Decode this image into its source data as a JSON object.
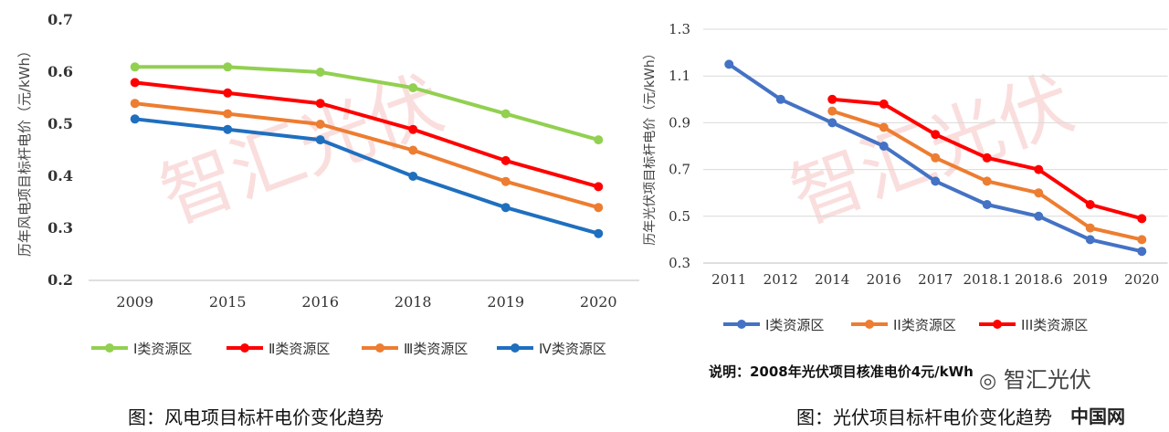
{
  "captions": {
    "wind": "图：风电项目标杆电价变化趋势",
    "solar": "图：光伏项目标杆电价变化趋势"
  },
  "note": "说明：2008年光伏项目核准电价4元/kWh",
  "watermark": "智汇光伏",
  "brand_overlay": {
    "wechat": "智汇光伏",
    "site": "中国网"
  },
  "colors": {
    "green": "#92d050",
    "red": "#ff0000",
    "orange": "#ed7d31",
    "blue": "#1f6fbf",
    "blue_solar": "#4472c4",
    "grid": "#d9d9d9",
    "watermark": "#f6c3c3"
  },
  "chart_data": [
    {
      "type": "line",
      "title": "",
      "ylabel": "历年风电项目标杆电价（元/kWh）",
      "xlabel": "",
      "categories": [
        "2009",
        "2015",
        "2016",
        "2018",
        "2019",
        "2020"
      ],
      "y_ticks": [
        "0.2",
        "0.3",
        "0.4",
        "0.5",
        "0.6",
        "0.7"
      ],
      "ylim": [
        0.2,
        0.7
      ],
      "grid": false,
      "legend_position": "bottom",
      "series": [
        {
          "name": "Ⅰ类资源区",
          "color": "#92d050",
          "values": [
            0.61,
            0.61,
            0.6,
            0.57,
            0.52,
            0.47
          ]
        },
        {
          "name": "Ⅱ类资源区",
          "color": "#ff0000",
          "values": [
            0.58,
            0.56,
            0.54,
            0.49,
            0.43,
            0.38
          ]
        },
        {
          "name": "Ⅲ类资源区",
          "color": "#ed7d31",
          "values": [
            0.54,
            0.52,
            0.5,
            0.45,
            0.39,
            0.34
          ]
        },
        {
          "name": "Ⅳ类资源区",
          "color": "#1f6fbf",
          "values": [
            0.51,
            0.49,
            0.47,
            0.4,
            0.34,
            0.29
          ]
        }
      ]
    },
    {
      "type": "line",
      "title": "",
      "ylabel": "历年光伏项目标杆电价（元/kWh）",
      "xlabel": "",
      "categories": [
        "2011",
        "2012",
        "2014",
        "2016",
        "2017",
        "2018.1",
        "2018.6",
        "2019",
        "2020"
      ],
      "y_ticks": [
        "0.3",
        "0.5",
        "0.7",
        "0.9",
        "1.1",
        "1.3"
      ],
      "ylim": [
        0.3,
        1.3
      ],
      "grid": true,
      "legend_position": "bottom",
      "series": [
        {
          "name": "I类资源区",
          "color": "#4472c4",
          "values": [
            1.15,
            1.0,
            0.9,
            0.8,
            0.65,
            0.55,
            0.5,
            0.4,
            0.35
          ]
        },
        {
          "name": "II类资源区",
          "color": "#ed7d31",
          "values": [
            null,
            null,
            0.95,
            0.88,
            0.75,
            0.65,
            0.6,
            0.45,
            0.4
          ]
        },
        {
          "name": "III类资源区",
          "color": "#ff0000",
          "values": [
            null,
            null,
            1.0,
            0.98,
            0.85,
            0.75,
            0.7,
            0.55,
            0.49
          ]
        }
      ]
    }
  ]
}
